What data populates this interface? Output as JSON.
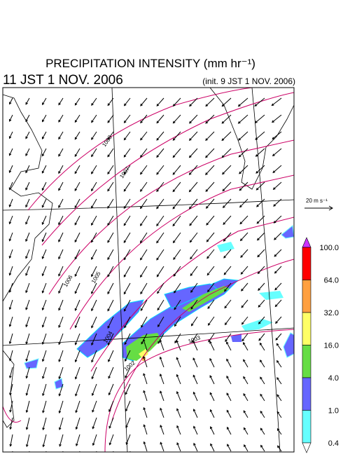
{
  "header": {
    "title": "PRECIPITATION INTENSITY (mm hr⁻¹)",
    "valid_time": "11 JST 1 NOV. 2006",
    "init_time": "(init. 9 JST 1 NOV. 2006)"
  },
  "vector_legend": "20 m s⁻¹",
  "colorbar": {
    "labels": [
      "100.0",
      "64.0",
      "32.0",
      "16.0",
      "4.0",
      "1.0",
      "0.4"
    ],
    "colors": [
      "#cc33ff",
      "#ff0000",
      "#ffa040",
      "#ffff66",
      "#66dd44",
      "#6666ff",
      "#66ffff",
      "#ffffff"
    ]
  },
  "isobar_labels": [
    "1008",
    "1007",
    "1006",
    "1005",
    "1004",
    "1002",
    "1003"
  ]
}
